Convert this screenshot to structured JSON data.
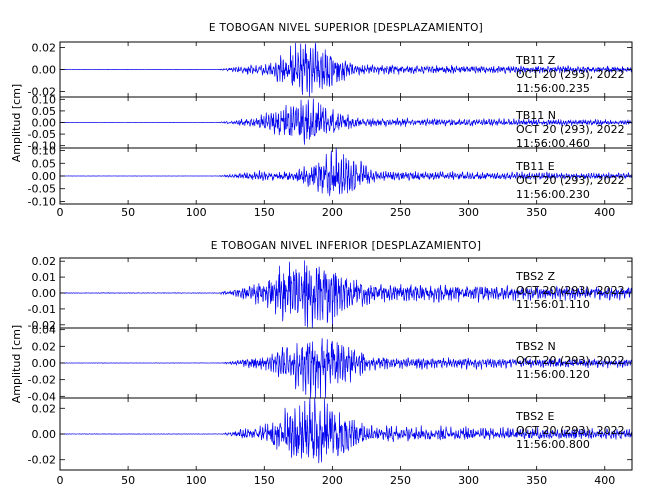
{
  "chart_data": [
    {
      "type": "line",
      "title": "E TOBOGAN NIVEL SUPERIOR [DESPLAZAMIENTO]",
      "ylabel": "Amplitud [cm]",
      "xlabel": "",
      "xlim": [
        0,
        420
      ],
      "x_ticks": [
        "0",
        "50",
        "100",
        "150",
        "200",
        "250",
        "300",
        "350",
        "400"
      ],
      "panels": [
        {
          "component": "Z",
          "station": "TB11",
          "ylim": [
            -0.025,
            0.025
          ],
          "y_ticks": [
            {
              "v": 0.02,
              "label": "0.02"
            },
            {
              "v": 0.0,
              "label": "0.00"
            },
            {
              "v": -0.02,
              "label": "-0.02"
            }
          ],
          "annotation": [
            "TB11    Z",
            "OCT 20 (293), 2022",
            "11:56:00.235"
          ],
          "onset": 115,
          "peak_time": 183,
          "peak_amp": 0.022,
          "envelope_width": 18,
          "coda_amp": 0.003
        },
        {
          "component": "N",
          "station": "TB11",
          "ylim": [
            -0.11,
            0.11
          ],
          "y_ticks": [
            {
              "v": 0.1,
              "label": "0.10"
            },
            {
              "v": 0.05,
              "label": "0.05"
            },
            {
              "v": 0.0,
              "label": "0.00"
            },
            {
              "v": -0.05,
              "label": "-0.05"
            },
            {
              "v": -0.1,
              "label": "-0.10"
            }
          ],
          "annotation": [
            "TB11    N",
            "OCT 20 (293), 2022",
            "11:56:00.460"
          ],
          "onset": 115,
          "peak_time": 180,
          "peak_amp": 0.085,
          "envelope_width": 20,
          "coda_amp": 0.012
        },
        {
          "component": "E",
          "station": "TB11",
          "ylim": [
            -0.11,
            0.11
          ],
          "y_ticks": [
            {
              "v": 0.1,
              "label": "0.10"
            },
            {
              "v": 0.05,
              "label": "0.05"
            },
            {
              "v": 0.0,
              "label": "0.00"
            },
            {
              "v": -0.05,
              "label": "-0.05"
            },
            {
              "v": -0.1,
              "label": "-0.10"
            }
          ],
          "annotation": [
            "TB11    E",
            "OCT 20 (293), 2022",
            "11:56:00.230"
          ],
          "onset": 115,
          "peak_time": 203,
          "peak_amp": 0.09,
          "envelope_width": 16,
          "coda_amp": 0.012
        }
      ]
    },
    {
      "type": "line",
      "title": "E TOBOGAN NIVEL INFERIOR [DESPLAZAMIENTO]",
      "ylabel": "Amplitud [cm]",
      "xlabel": "",
      "xlim": [
        0,
        420
      ],
      "x_ticks": [
        "0",
        "50",
        "100",
        "150",
        "200",
        "250",
        "300",
        "350",
        "400"
      ],
      "panels": [
        {
          "component": "Z",
          "station": "TBS2",
          "ylim": [
            -0.022,
            0.022
          ],
          "y_ticks": [
            {
              "v": 0.02,
              "label": "0.02"
            },
            {
              "v": 0.01,
              "label": "0.01"
            },
            {
              "v": 0.0,
              "label": "0.00"
            },
            {
              "v": -0.01,
              "label": "-0.01"
            },
            {
              "v": -0.02,
              "label": "-0.02"
            }
          ],
          "annotation": [
            "TBS2    Z",
            "OCT 20 (293), 2022",
            "11:56:01.110"
          ],
          "onset": 118,
          "peak_time": 185,
          "peak_amp": 0.02,
          "envelope_width": 25,
          "coda_amp": 0.004
        },
        {
          "component": "N",
          "station": "TBS2",
          "ylim": [
            -0.042,
            0.042
          ],
          "y_ticks": [
            {
              "v": 0.04,
              "label": "0.04"
            },
            {
              "v": 0.02,
              "label": "0.02"
            },
            {
              "v": 0.0,
              "label": "0.00"
            },
            {
              "v": -0.02,
              "label": "-0.02"
            },
            {
              "v": -0.04,
              "label": "-0.04"
            }
          ],
          "annotation": [
            "TBS2    N",
            "OCT 20 (293), 2022",
            "11:56:00.120"
          ],
          "onset": 118,
          "peak_time": 190,
          "peak_amp": 0.035,
          "envelope_width": 22,
          "coda_amp": 0.005
        },
        {
          "component": "E",
          "station": "TBS2",
          "ylim": [
            -0.028,
            0.028
          ],
          "y_ticks": [
            {
              "v": 0.02,
              "label": "0.02"
            },
            {
              "v": 0.0,
              "label": "0.00"
            },
            {
              "v": -0.02,
              "label": "-0.02"
            }
          ],
          "annotation": [
            "TBS2    E",
            "OCT 20 (293), 2022",
            "11:56:00.800"
          ],
          "onset": 118,
          "peak_time": 187,
          "peak_amp": 0.024,
          "envelope_width": 22,
          "coda_amp": 0.004
        }
      ]
    }
  ],
  "colors": {
    "trace": "#0000ee",
    "axes": "#000000",
    "background": "#ffffff"
  }
}
